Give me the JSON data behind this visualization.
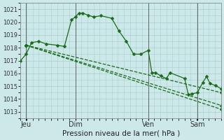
{
  "xlabel": "Pression niveau de la mer( hPa )",
  "bg_color": "#cde8e8",
  "grid_color": "#aacece",
  "line_color": "#1a6b1a",
  "marker": "D",
  "markersize": 2.5,
  "linewidth": 0.9,
  "ylim": [
    1012.5,
    1021.5
  ],
  "yticks": [
    1013,
    1014,
    1015,
    1016,
    1017,
    1018,
    1019,
    1020,
    1021
  ],
  "xlim": [
    0,
    5.5
  ],
  "xtick_positions": [
    0.15,
    1.5,
    3.5,
    4.85
  ],
  "xtick_labels": [
    "Jeu",
    "Dim",
    "Ven",
    "Sam"
  ],
  "vline_positions": [
    0.15,
    1.5,
    3.5,
    4.85
  ],
  "series": [
    {
      "x": [
        0.0,
        0.15,
        0.3,
        0.5,
        0.7,
        1.0,
        1.2,
        1.4,
        1.5,
        1.6,
        1.7,
        1.85,
        2.0,
        2.2,
        2.5,
        2.7,
        2.9,
        3.1,
        3.3,
        3.5,
        3.6,
        3.7,
        3.85,
        4.0,
        4.1,
        4.5,
        4.6,
        4.7,
        4.85,
        5.0,
        5.1,
        5.2,
        5.35,
        5.5
      ],
      "y": [
        1017.0,
        1017.5,
        1018.4,
        1018.5,
        1018.3,
        1018.2,
        1018.1,
        1020.2,
        1020.4,
        1020.7,
        1020.7,
        1020.55,
        1020.4,
        1020.5,
        1020.3,
        1019.3,
        1018.5,
        1017.5,
        1017.5,
        1017.8,
        1016.05,
        1016.05,
        1015.8,
        1015.6,
        1016.05,
        1015.6,
        1014.35,
        1014.4,
        1014.5,
        1015.3,
        1015.75,
        1015.2,
        1015.05,
        1014.8
      ]
    },
    {
      "x": [
        0.15,
        5.5
      ],
      "y": [
        1018.2,
        1014.5
      ]
    },
    {
      "x": [
        0.15,
        5.5
      ],
      "y": [
        1018.2,
        1013.2
      ]
    },
    {
      "x": [
        0.15,
        5.5
      ],
      "y": [
        1018.2,
        1013.5
      ]
    }
  ]
}
